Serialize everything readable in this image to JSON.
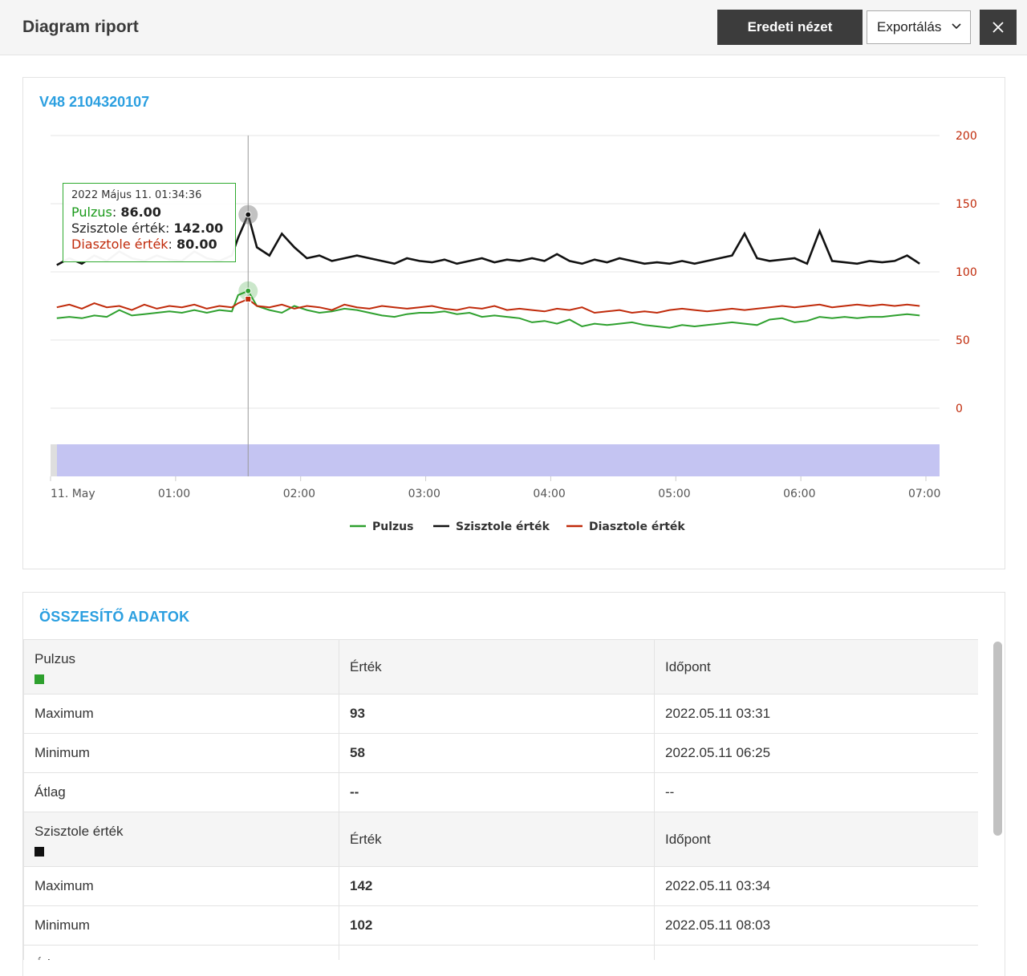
{
  "header": {
    "title": "Diagram riport",
    "reset_label": "Eredeti nézet",
    "export_label": "Exportálás"
  },
  "chart_title": "V48 2104320107",
  "tooltip": {
    "datetime": "2022 Május 11. 01:34:36",
    "rows": [
      {
        "label": "Pulzus",
        "value": "86.00",
        "color": "#1a9a1a"
      },
      {
        "label": "Szisztole érték",
        "value": "142.00",
        "color": "#222222"
      },
      {
        "label": "Diasztole érték",
        "value": "80.00",
        "color": "#c02a0a"
      }
    ]
  },
  "chart_data": {
    "type": "line",
    "x_tick_labels": [
      "11. May",
      "01:00",
      "02:00",
      "03:00",
      "04:00",
      "05:00",
      "06:00",
      "07:00"
    ],
    "y_tick_labels": [
      "200",
      "150",
      "100",
      "50",
      "0"
    ],
    "ylim": [
      0,
      200
    ],
    "x_range_hours": [
      0,
      7
    ],
    "grid": true,
    "legend_position": "bottom-center",
    "crosshair_x_hours": 1.58,
    "series": [
      {
        "name": "Pulzus",
        "color": "#2ea02e",
        "x": [
          0.05,
          0.15,
          0.25,
          0.35,
          0.45,
          0.55,
          0.65,
          0.75,
          0.85,
          0.95,
          1.05,
          1.15,
          1.25,
          1.35,
          1.45,
          1.5,
          1.58,
          1.65,
          1.75,
          1.85,
          1.95,
          2.05,
          2.15,
          2.25,
          2.35,
          2.45,
          2.55,
          2.65,
          2.75,
          2.85,
          2.95,
          3.05,
          3.15,
          3.25,
          3.35,
          3.45,
          3.55,
          3.65,
          3.75,
          3.85,
          3.95,
          4.05,
          4.15,
          4.25,
          4.35,
          4.45,
          4.55,
          4.65,
          4.75,
          4.85,
          4.95,
          5.05,
          5.15,
          5.25,
          5.35,
          5.45,
          5.55,
          5.65,
          5.75,
          5.85,
          5.95,
          6.05,
          6.15,
          6.25,
          6.35,
          6.45,
          6.55,
          6.65,
          6.75,
          6.85,
          6.95
        ],
        "values": [
          66,
          67,
          66,
          68,
          67,
          72,
          68,
          69,
          70,
          71,
          70,
          72,
          70,
          72,
          71,
          83,
          86,
          75,
          72,
          70,
          75,
          72,
          70,
          71,
          73,
          72,
          70,
          68,
          67,
          69,
          70,
          70,
          71,
          69,
          70,
          67,
          68,
          67,
          66,
          63,
          64,
          62,
          65,
          60,
          62,
          61,
          62,
          63,
          61,
          60,
          59,
          61,
          60,
          61,
          62,
          63,
          62,
          61,
          65,
          66,
          63,
          64,
          67,
          66,
          67,
          66,
          67,
          67,
          68,
          69,
          68
        ]
      },
      {
        "name": "Szisztole érték",
        "color": "#111111",
        "x": [
          0.05,
          0.15,
          0.25,
          0.35,
          0.45,
          0.55,
          0.65,
          0.75,
          0.85,
          0.95,
          1.05,
          1.15,
          1.25,
          1.35,
          1.45,
          1.5,
          1.58,
          1.65,
          1.75,
          1.85,
          1.95,
          2.05,
          2.15,
          2.25,
          2.35,
          2.45,
          2.55,
          2.65,
          2.75,
          2.85,
          2.95,
          3.05,
          3.15,
          3.25,
          3.35,
          3.45,
          3.55,
          3.65,
          3.75,
          3.85,
          3.95,
          4.05,
          4.15,
          4.25,
          4.35,
          4.45,
          4.55,
          4.65,
          4.75,
          4.85,
          4.95,
          5.05,
          5.15,
          5.25,
          5.35,
          5.45,
          5.55,
          5.65,
          5.75,
          5.85,
          5.95,
          6.05,
          6.15,
          6.25,
          6.35,
          6.45,
          6.55,
          6.65,
          6.75,
          6.85,
          6.95
        ],
        "values": [
          105,
          110,
          106,
          112,
          108,
          115,
          110,
          108,
          112,
          109,
          108,
          115,
          110,
          108,
          112,
          125,
          142,
          118,
          112,
          128,
          118,
          110,
          112,
          108,
          110,
          112,
          110,
          108,
          106,
          110,
          108,
          107,
          109,
          106,
          108,
          110,
          107,
          109,
          108,
          110,
          108,
          113,
          108,
          106,
          109,
          107,
          110,
          108,
          106,
          107,
          106,
          108,
          106,
          108,
          110,
          112,
          128,
          110,
          108,
          109,
          110,
          106,
          130,
          108,
          107,
          106,
          108,
          107,
          108,
          112,
          106
        ]
      },
      {
        "name": "Diasztole érték",
        "color": "#c02a0a",
        "x": [
          0.05,
          0.15,
          0.25,
          0.35,
          0.45,
          0.55,
          0.65,
          0.75,
          0.85,
          0.95,
          1.05,
          1.15,
          1.25,
          1.35,
          1.45,
          1.5,
          1.58,
          1.65,
          1.75,
          1.85,
          1.95,
          2.05,
          2.15,
          2.25,
          2.35,
          2.45,
          2.55,
          2.65,
          2.75,
          2.85,
          2.95,
          3.05,
          3.15,
          3.25,
          3.35,
          3.45,
          3.55,
          3.65,
          3.75,
          3.85,
          3.95,
          4.05,
          4.15,
          4.25,
          4.35,
          4.45,
          4.55,
          4.65,
          4.75,
          4.85,
          4.95,
          5.05,
          5.15,
          5.25,
          5.35,
          5.45,
          5.55,
          5.65,
          5.75,
          5.85,
          5.95,
          6.05,
          6.15,
          6.25,
          6.35,
          6.45,
          6.55,
          6.65,
          6.75,
          6.85,
          6.95
        ],
        "values": [
          74,
          76,
          73,
          77,
          74,
          75,
          72,
          76,
          73,
          75,
          74,
          76,
          73,
          75,
          74,
          77,
          80,
          75,
          74,
          76,
          73,
          75,
          74,
          72,
          76,
          74,
          73,
          75,
          74,
          73,
          74,
          75,
          73,
          72,
          74,
          73,
          75,
          72,
          73,
          72,
          71,
          73,
          72,
          74,
          70,
          71,
          72,
          70,
          71,
          70,
          72,
          73,
          72,
          71,
          72,
          73,
          72,
          73,
          74,
          75,
          74,
          75,
          76,
          74,
          75,
          76,
          75,
          76,
          75,
          76,
          75
        ]
      }
    ]
  },
  "summary": {
    "title": "ÖSSZESÍTŐ ADATOK",
    "col_value": "Érték",
    "col_time": "Időpont",
    "groups": [
      {
        "name": "Pulzus",
        "color": "#2ea02e",
        "rows": [
          {
            "label": "Maximum",
            "value": "93",
            "time": "2022.05.11 03:31"
          },
          {
            "label": "Minimum",
            "value": "58",
            "time": "2022.05.11 06:25"
          },
          {
            "label": "Átlag",
            "value": "--",
            "time": "--"
          }
        ]
      },
      {
        "name": "Szisztole érték",
        "color": "#111111",
        "rows": [
          {
            "label": "Maximum",
            "value": "142",
            "time": "2022.05.11 03:34"
          },
          {
            "label": "Minimum",
            "value": "102",
            "time": "2022.05.11 08:03"
          },
          {
            "label": "Átlag",
            "value": "--",
            "time": "--"
          }
        ]
      }
    ]
  }
}
